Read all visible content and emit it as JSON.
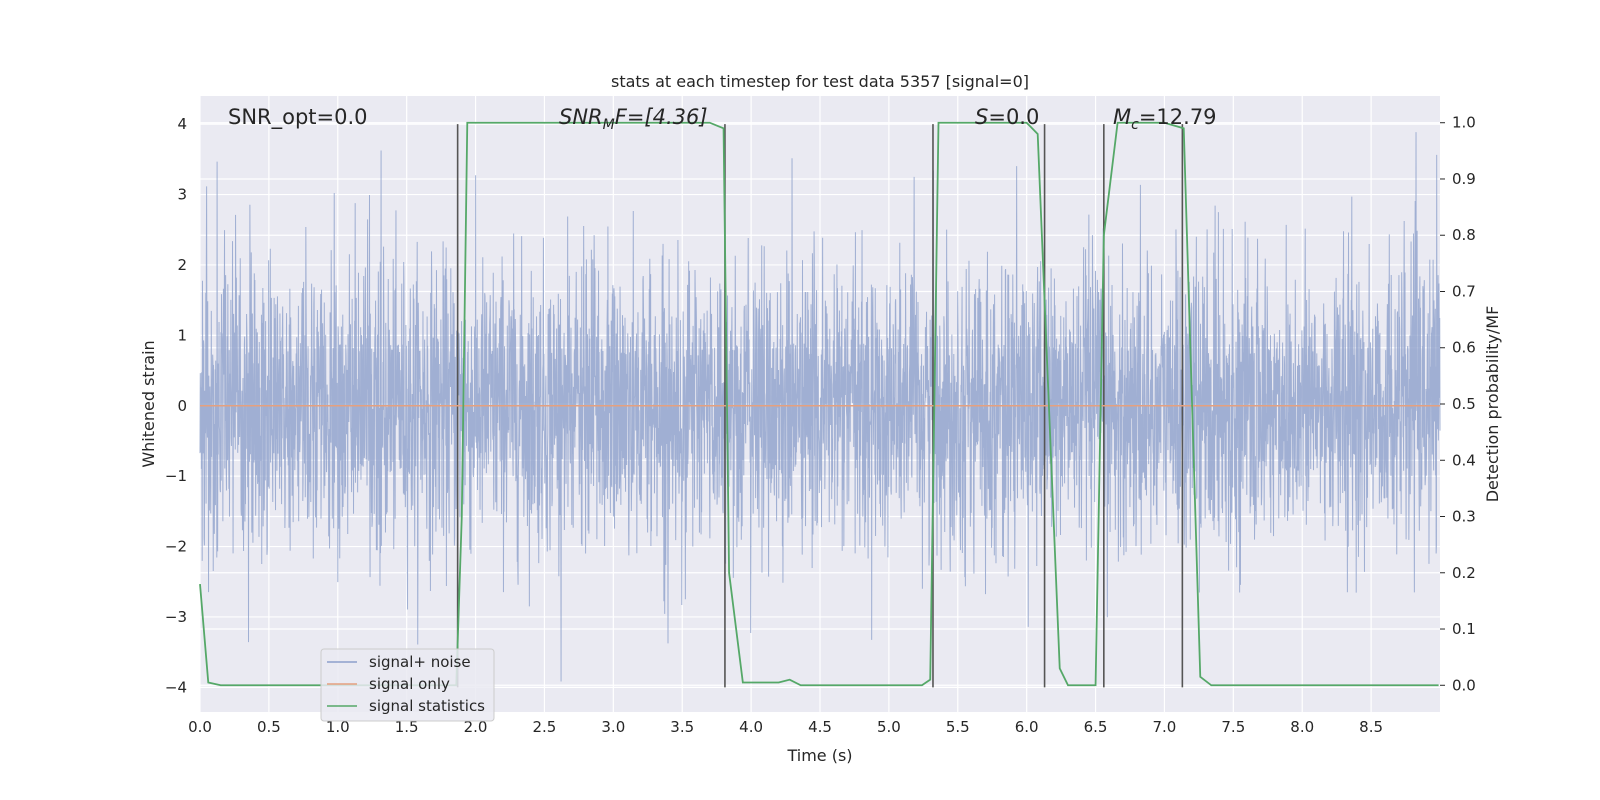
{
  "chart_data": {
    "type": "line",
    "title": "stats at each timestep for test data 5357 [signal=0]",
    "xlabel": "Time (s)",
    "ylabel_left": "Whitened strain",
    "ylabel_right": "Detection probability/MF",
    "xlim": [
      0,
      9.0
    ],
    "ylim_left": [
      -4.35,
      4.4
    ],
    "ylim_right": [
      -0.0475,
      1.0475
    ],
    "xticks": [
      "0.0",
      "0.5",
      "1.0",
      "1.5",
      "2.0",
      "2.5",
      "3.0",
      "3.5",
      "4.0",
      "4.5",
      "5.0",
      "5.5",
      "6.0",
      "6.5",
      "7.0",
      "7.5",
      "8.0",
      "8.5"
    ],
    "yticks_left": [
      "−4",
      "−3",
      "−2",
      "−1",
      "0",
      "1",
      "2",
      "3",
      "4"
    ],
    "yticks_right": [
      "0.0",
      "0.1",
      "0.2",
      "0.3",
      "0.4",
      "0.5",
      "0.6",
      "0.7",
      "0.8",
      "0.9",
      "1.0"
    ],
    "grid": true,
    "legend_position": "lower-left",
    "annotations": {
      "snr_opt": "SNR_opt=0.0",
      "snr_mf_main": "SNR",
      "snr_mf_sub": "M",
      "snr_mf_tail": "F=[4.36]",
      "s_main": "S",
      "s_tail": "=0.0",
      "mc_main": "M",
      "mc_sub": "c",
      "mc_tail": "=12.79"
    },
    "series": [
      {
        "name": "signal+ noise",
        "color": "#8da0cb",
        "kind": "noise",
        "amplitude_range": [
          -4.0,
          4.0
        ],
        "typical_envelope": [
          -1.6,
          1.6
        ]
      },
      {
        "name": "signal only",
        "color": "#e5a07f",
        "x": [
          0,
          9.0
        ],
        "y": [
          0,
          0
        ]
      },
      {
        "name": "signal statistics",
        "color": "#55a868",
        "x": [
          0.0,
          0.06,
          0.15,
          1.86,
          1.9,
          1.94,
          2.3,
          3.7,
          3.8,
          3.84,
          3.94,
          4.0,
          4.2,
          4.28,
          4.36,
          5.24,
          5.3,
          5.36,
          5.6,
          6.0,
          6.08,
          6.24,
          6.3,
          6.5,
          6.56,
          6.66,
          7.0,
          7.14,
          7.26,
          7.34,
          8.99
        ],
        "y": [
          0.18,
          0.005,
          0.0,
          0.0,
          0.3,
          1.0,
          1.0,
          1.0,
          0.99,
          0.2,
          0.005,
          0.005,
          0.005,
          0.01,
          0.0,
          0.0,
          0.01,
          1.0,
          1.0,
          1.0,
          0.98,
          0.03,
          0.0,
          0.0,
          0.8,
          1.0,
          1.0,
          0.99,
          0.015,
          0.0,
          0.0
        ]
      }
    ],
    "vertical_markers": [
      1.87,
      3.81,
      5.32,
      6.13,
      6.56,
      7.13
    ],
    "vertical_marker_color": "#555555"
  },
  "legend": {
    "noise_label": "signal+ noise",
    "signal_label": "signal only",
    "stats_label": "signal statistics"
  }
}
